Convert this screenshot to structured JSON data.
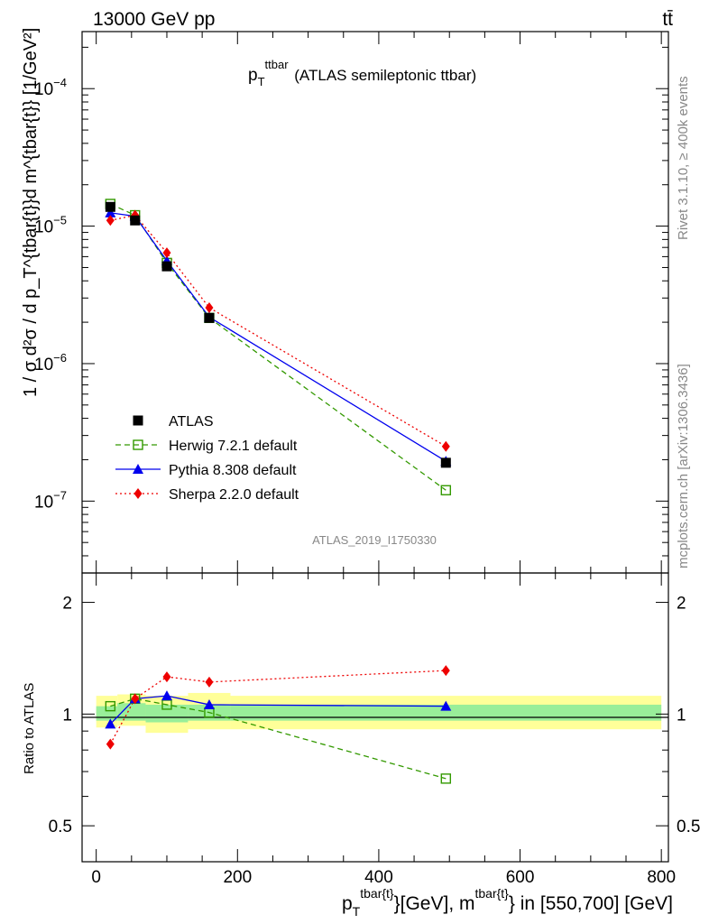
{
  "header": {
    "energy_label": "13000 GeV pp",
    "process_label": "tt̄"
  },
  "side": {
    "rivet_label": "Rivet 3.1.10, ≥ 400k events",
    "mcplots_label": "mcplots.cern.ch [arXiv:1306.3436]"
  },
  "watermark": "ATLAS_2019_I1750330",
  "chart_data": [
    {
      "type": "scatter",
      "panel": "main",
      "title": "p_T^ttbar (ATLAS semileptonic ttbar)",
      "title_main": "p",
      "title_sub": "T",
      "title_sup": "ttbar",
      "title_rest": " (ATLAS semileptonic ttbar)",
      "ylabel": "1 / σ d²σ / d p_T^{tbar{t}}d m^{tbar{t}} [1/GeV²]",
      "xlim": [
        -20,
        810
      ],
      "ylim": [
        3e-08,
        0.00026
      ],
      "yscale": "log",
      "yticks": [
        {
          "value": 0.0001,
          "label": "10",
          "exp": "−4"
        },
        {
          "value": 1e-05,
          "label": "10",
          "exp": "−5"
        },
        {
          "value": 1e-06,
          "label": "10",
          "exp": "−6"
        },
        {
          "value": 1e-07,
          "label": "10",
          "exp": "−7"
        }
      ],
      "legend_position": "lower-left",
      "series": [
        {
          "name": "ATLAS",
          "color": "#000000",
          "marker": "filled-square",
          "line": "none",
          "x": [
            20,
            55,
            100,
            160,
            495
          ],
          "y": [
            1.38e-05,
            1.1e-05,
            5.1e-06,
            2.15e-06,
            1.9e-07
          ]
        },
        {
          "name": "Herwig 7.2.1 default",
          "color": "#339900",
          "marker": "open-square",
          "line": "dashed",
          "x": [
            20,
            55,
            100,
            160,
            495
          ],
          "y": [
            1.45e-05,
            1.2e-05,
            5.4e-06,
            2.15e-06,
            1.2e-07
          ]
        },
        {
          "name": "Pythia 8.308 default",
          "color": "#0000ee",
          "marker": "triangle",
          "line": "solid",
          "x": [
            20,
            55,
            100,
            160,
            495
          ],
          "y": [
            1.25e-05,
            1.18e-05,
            5.6e-06,
            2.18e-06,
            1.95e-07
          ]
        },
        {
          "name": "Sherpa 2.2.0 default",
          "color": "#ee0000",
          "marker": "diamond",
          "line": "dotted",
          "x": [
            20,
            55,
            100,
            160,
            495
          ],
          "y": [
            1.1e-05,
            1.2e-05,
            6.4e-06,
            2.55e-06,
            2.5e-07
          ]
        }
      ]
    },
    {
      "type": "scatter",
      "panel": "ratio",
      "ylabel": "Ratio to ATLAS",
      "xlabel": "p_T^{tbar{t}}[GeV], m^{tbar{t}} in [550,700] [GeV]",
      "xlabel_main": "p",
      "xlabel_sub": "T",
      "xlabel_sup": "tbar{t}",
      "xlabel_mid": "}[GeV], m",
      "xlabel_sup2": "tbar{t}",
      "xlabel_rest": "} in [550,700] [GeV]",
      "xlim": [
        -20,
        810
      ],
      "ylim": [
        0.4,
        2.4
      ],
      "yscale": "log",
      "xticks": [
        0,
        200,
        400,
        600,
        800
      ],
      "yticks": [
        0.5,
        1,
        2
      ],
      "uncertainty_bands": [
        {
          "x0": 0,
          "x1": 30,
          "inner": [
            0.96,
            1.05
          ],
          "outer": [
            0.92,
            1.12
          ]
        },
        {
          "x0": 30,
          "x1": 70,
          "inner": [
            0.96,
            1.07
          ],
          "outer": [
            0.93,
            1.13
          ]
        },
        {
          "x0": 70,
          "x1": 130,
          "inner": [
            0.95,
            1.06
          ],
          "outer": [
            0.89,
            1.12
          ]
        },
        {
          "x0": 130,
          "x1": 190,
          "inner": [
            0.96,
            1.06
          ],
          "outer": [
            0.91,
            1.14
          ]
        },
        {
          "x0": 190,
          "x1": 800,
          "inner": [
            0.96,
            1.06
          ],
          "outer": [
            0.91,
            1.12
          ]
        }
      ],
      "series": [
        {
          "name": "Herwig 7.2.1 default",
          "color": "#339900",
          "marker": "open-square",
          "line": "dashed",
          "x": [
            20,
            55,
            100,
            160,
            495
          ],
          "y": [
            1.05,
            1.1,
            1.06,
            1.01,
            0.67
          ]
        },
        {
          "name": "Pythia 8.308 default",
          "color": "#0000ee",
          "marker": "triangle",
          "line": "solid",
          "x": [
            20,
            55,
            100,
            160,
            495
          ],
          "y": [
            0.94,
            1.1,
            1.12,
            1.06,
            1.05
          ]
        },
        {
          "name": "Sherpa 2.2.0 default",
          "color": "#ee0000",
          "marker": "diamond",
          "line": "dotted",
          "x": [
            20,
            55,
            100,
            160,
            495
          ],
          "y": [
            0.83,
            1.1,
            1.26,
            1.22,
            1.31
          ]
        }
      ]
    }
  ]
}
